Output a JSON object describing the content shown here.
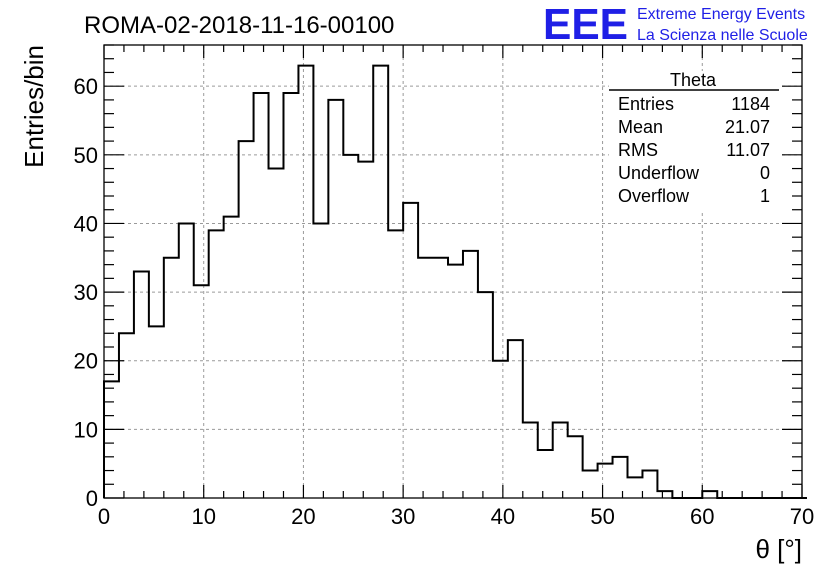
{
  "header": {
    "run_title": "ROMA-02-2018-11-16-00100",
    "logo_text": "EEE",
    "logo_line1": "Extreme Energy Events",
    "logo_line2": "La Scienza nelle Scuole",
    "logo_color": "#1f1fe6"
  },
  "stats_box": {
    "title": "Theta",
    "rows": [
      {
        "label": "Entries",
        "value": "1184"
      },
      {
        "label": "Mean",
        "value": "21.07"
      },
      {
        "label": "RMS",
        "value": "11.07"
      },
      {
        "label": "Underflow",
        "value": "0"
      },
      {
        "label": "Overflow",
        "value": "1"
      }
    ]
  },
  "chart_data": {
    "type": "bar",
    "histogram_style": "step",
    "xlabel": "θ [°]",
    "ylabel": "Entries/bin",
    "xlim": [
      0,
      70
    ],
    "ylim": [
      0,
      66
    ],
    "grid": true,
    "bin_width": 1.5,
    "bin_start": 0,
    "values": [
      17,
      24,
      33,
      25,
      35,
      40,
      31,
      39,
      41,
      52,
      59,
      48,
      59,
      63,
      40,
      58,
      50,
      49,
      63,
      39,
      43,
      35,
      35,
      34,
      36,
      30,
      20,
      23,
      11,
      7,
      11,
      9,
      4,
      5,
      6,
      3,
      4,
      1,
      0,
      0,
      1,
      0,
      0,
      0,
      0,
      0,
      0
    ],
    "x_ticks": [
      0,
      10,
      20,
      30,
      40,
      50,
      60,
      70
    ],
    "y_ticks": [
      0,
      10,
      20,
      30,
      40,
      50,
      60
    ],
    "line_color": "#000000",
    "grid_color": "#9a9a9a"
  }
}
